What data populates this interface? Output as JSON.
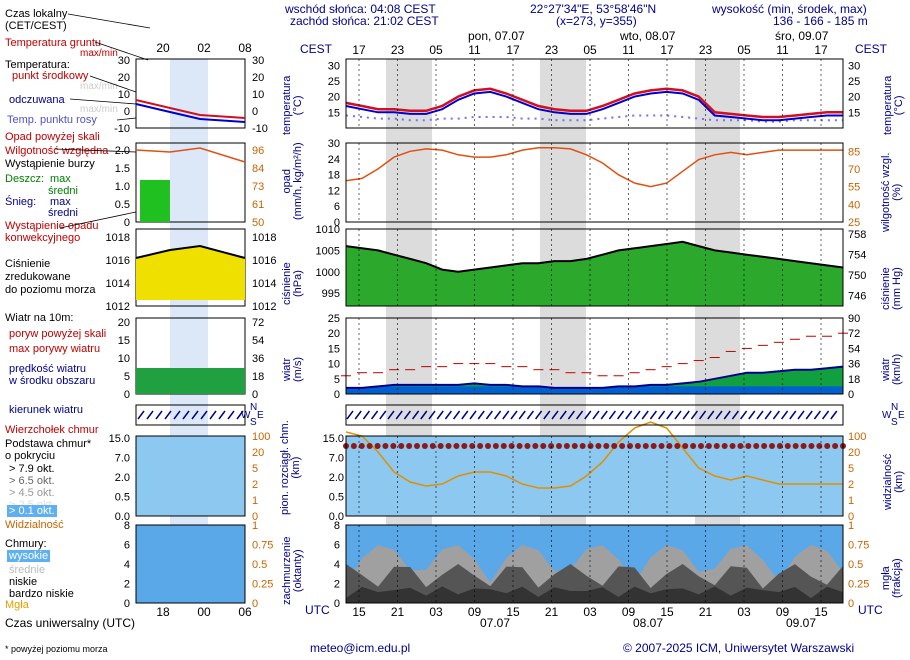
{
  "header": {
    "sunrise": "wschód słońca: 04:08 CEST",
    "sunset": "zachód słońca: 21:02 CEST",
    "coords": "22°27'34\"E, 53°58'46\"N",
    "grid": "(x=273, y=355)",
    "elev_label": "wysokość (min, środek, max)",
    "elev_values": "136 - 166 - 185 m"
  },
  "legend": {
    "local_time": "Czas lokalny\n(CET/CEST)",
    "soil_temp": "Temperatura gruntu",
    "maxmin": "max/min",
    "temperature": "Temperatura:",
    "mid_point": "punkt środkowy",
    "maxmin2": "max/min",
    "feels": "odczuwana",
    "maxmin3": "max/min",
    "dew": "Temp. punktu rosy",
    "precip_above": "Opad powyżej skali",
    "humidity": "Wilgotność względna",
    "storm": "Wystąpienie burzy",
    "rain": "Deszcz:",
    "max": "max",
    "mean": "średni",
    "snow": "Śnieg:",
    "conv": "Wystąpienie opadu\nkonwekcyjnego",
    "pressure": "Ciśnienie\nzredukowane\ndo poziomu morza",
    "wind10": "Wiatr na 10m:",
    "gust_above": "poryw powyżej skali",
    "gust_max": "max porywy wiatru",
    "wind_speed": "prędkość wiatru\nw środku obszaru",
    "wind_dir": "kierunek wiatru",
    "cloud_top": "Wierzchołek chmur",
    "cloud_base": "Podstawa chmur*\no pokryciu",
    "o79": "> 7.9 okt.",
    "o65": "> 6.5 okt.",
    "o45": "> 4.5 okt.",
    "o25": "> 2.5 okt.",
    "o01": "> 0.1 okt.",
    "visibility": "Widzialność",
    "clouds": "Chmury:",
    "high": "wysokie",
    "middle": "średnie",
    "low": "niskie",
    "verylow": "bardzo niskie",
    "fog": "Mgła",
    "utc": "Czas uniwersalny (UTC)",
    "footnote": "* powyżej poziomu morza"
  },
  "axes": {
    "temp_l": "temperatura\n(°C)",
    "temp_r": "temperatura\n(°C)",
    "precip_l": "opad\n(mm/h, kg/m²/h)",
    "precip_r": "wilgotność wzgl.\n(%)",
    "pres_l": "ciśnienie\n(hPa)",
    "pres_r": "ciśnienie\n(mm Hg)",
    "wind_l": "wiatr\n(m/s)",
    "wind_r": "wiatr\n(km/h)",
    "cloud_l": "pion. rozciągł. chm.\n(km)",
    "cloud_r": "widzialność\n(km)",
    "cover_l": "zachmurzenie\n(oktanty)",
    "cover_r": "mgła\n(frakcja)",
    "cest": "CEST",
    "utc": "UTC"
  },
  "days": {
    "d1": "pon, 07.07",
    "d2": "wto, 08.07",
    "d3": "śro, 09.07",
    "b1": "07.07",
    "b2": "08.07",
    "b3": "09.07"
  },
  "compass": {
    "n": "N",
    "w": "W",
    "s": "S",
    "e": "E"
  },
  "footer": {
    "email": "meteo@icm.edu.pl",
    "copy": "© 2007-2025 ICM, Uniwersytet Warszawski"
  },
  "colors": {
    "temp": "#d01020",
    "feels": "#0000cc",
    "dew": "#7070ff",
    "humidity": "#e05010",
    "pressure_fill": "#20a020",
    "wind_fill": "#0060d0",
    "cloud_bg": "#8dc8f0",
    "night": "#dcdcdc"
  },
  "chart_data": {
    "type": "meteogram",
    "cest_ticks": [
      "17",
      "23",
      "05",
      "11",
      "17",
      "23",
      "05",
      "11",
      "17",
      "23",
      "05",
      "11",
      "17"
    ],
    "utc_ticks": [
      "15",
      "21",
      "03",
      "09",
      "15",
      "21",
      "03",
      "09",
      "15",
      "21",
      "03",
      "09",
      "15"
    ],
    "temperature": {
      "ylim": [
        10,
        32
      ],
      "ticks": [
        15,
        20,
        25,
        30
      ],
      "values": [
        18,
        17,
        16,
        16,
        15.5,
        15.5,
        17,
        20,
        22,
        22.5,
        21,
        19,
        17,
        16,
        15.5,
        15.5,
        17,
        19,
        21,
        22,
        22.5,
        22,
        20,
        15,
        14.5,
        14,
        13.5,
        13.5,
        14,
        14.5,
        15,
        15
      ],
      "dew": [
        14,
        13.5,
        13,
        13,
        12.5,
        12.5,
        13,
        13,
        13.5,
        13.5,
        13.5,
        13,
        13,
        12.5,
        12.5,
        12.5,
        13,
        13.5,
        14,
        14,
        14,
        13.5,
        13,
        12.5,
        12.5,
        12.5,
        12,
        12,
        12.5,
        12.5,
        12.5,
        12.5
      ]
    },
    "precip": {
      "ylim": [
        0,
        30
      ],
      "ticks": [
        0,
        6,
        12,
        18,
        24,
        30
      ],
      "hum_ticks": [
        25,
        40,
        55,
        70,
        85
      ]
    },
    "humidity": [
      60,
      62,
      70,
      80,
      85,
      87,
      86,
      82,
      80,
      80,
      82,
      86,
      88,
      88,
      87,
      82,
      75,
      65,
      58,
      55,
      58,
      68,
      78,
      82,
      84,
      82,
      84,
      86,
      86,
      86,
      86,
      86
    ],
    "pressure": {
      "ylim": [
        992,
        1010
      ],
      "ticks": [
        995,
        1000,
        1005,
        1010
      ],
      "mmhg_ticks": [
        746,
        750,
        754,
        758
      ],
      "values": [
        1006,
        1005.5,
        1005,
        1004,
        1003,
        1002,
        1000.5,
        1000,
        1000.5,
        1001,
        1001.5,
        1002,
        1002,
        1002.5,
        1002.5,
        1003,
        1004,
        1005,
        1005.5,
        1006,
        1006.5,
        1007,
        1006,
        1005,
        1004.5,
        1004,
        1003.5,
        1003,
        1002.5,
        1002,
        1001.5,
        1001
      ]
    },
    "wind": {
      "ylim": [
        0,
        25
      ],
      "ticks": [
        0,
        5,
        10,
        15,
        20,
        25
      ],
      "kmh_ticks": [
        0,
        18,
        36,
        54,
        72,
        90
      ],
      "speed": [
        2,
        2,
        2.5,
        3,
        3,
        3,
        3,
        3,
        3.5,
        3,
        3,
        2.5,
        2.5,
        2,
        2,
        2,
        2,
        2.5,
        2.5,
        3,
        3,
        3.5,
        4,
        5,
        6,
        7,
        7,
        7.5,
        8,
        8,
        8.5,
        9
      ],
      "gust": [
        6,
        7,
        7,
        8,
        8,
        9,
        9,
        10,
        10,
        10,
        9,
        9,
        8,
        8,
        7,
        7,
        6,
        6,
        7,
        8,
        9,
        10,
        11,
        12,
        14,
        15,
        16,
        17,
        18,
        19,
        19,
        20
      ]
    },
    "cloud": {
      "ylim": [
        0,
        15
      ],
      "ticks": [
        "0.0",
        "0.5",
        "2.0",
        "7.0",
        "15.0"
      ],
      "vis_ticks": [
        0,
        1,
        2,
        5,
        20,
        100
      ]
    },
    "cover": {
      "ylim": [
        0,
        8
      ],
      "ticks": [
        0,
        2,
        4,
        6,
        8
      ],
      "fog_ticks": [
        "0",
        "0.25",
        "0.5",
        "0.75",
        "1"
      ]
    },
    "left": {
      "top_ticks": [
        "20",
        "02",
        "08"
      ],
      "bot_ticks": [
        "18",
        "00",
        "06"
      ],
      "temp_ticks": [
        "-10",
        "0",
        "10",
        "20",
        "30"
      ],
      "rh_ticks": [
        "50",
        "61",
        "73",
        "84",
        "96"
      ],
      "pr_ticks": [
        "0",
        "0.5",
        "1.0",
        "1.5",
        "2.0"
      ],
      "pres_ticks": [
        "1012",
        "1014",
        "1016",
        "1018"
      ],
      "wind_ticks": [
        "0",
        "5",
        "10",
        "15",
        "20"
      ],
      "wind_r": [
        "0",
        "18",
        "36",
        "54",
        "72"
      ],
      "cloud_ticks": [
        "0.0",
        "0.5",
        "2.0",
        "7.0",
        "15.0"
      ],
      "vis_ticks": [
        "0",
        "1",
        "2",
        "5",
        "20",
        "100"
      ],
      "cover_ticks": [
        "0",
        "2",
        "4",
        "6",
        "8"
      ],
      "fog_ticks": [
        "0",
        "0.25",
        "0.5",
        "0.75",
        "1"
      ]
    }
  }
}
